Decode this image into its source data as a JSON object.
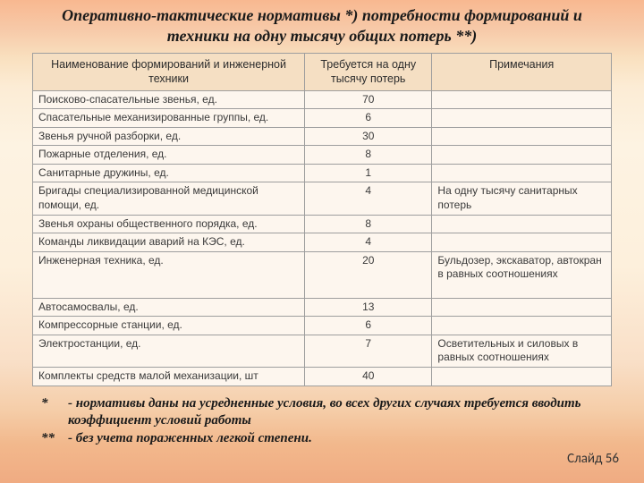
{
  "title": "Оперативно-тактические нормативы *) потребности формирований и техники на одну тысячу общих потерь **)",
  "headers": {
    "name": "Наименование формирований и инженерной техники",
    "num": "Требуется на одну тысячу потерь",
    "note": "Примечания"
  },
  "rows": [
    {
      "name": "Поисково-спасательные звенья, ед.",
      "num": "70",
      "note": ""
    },
    {
      "name": "Спасательные механизированные группы, ед.",
      "num": "6",
      "note": ""
    },
    {
      "name": "Звенья ручной разборки, ед.",
      "num": "30",
      "note": ""
    },
    {
      "name": "Пожарные отделения, ед.",
      "num": "8",
      "note": ""
    },
    {
      "name": "Санитарные дружины, ед.",
      "num": "1",
      "note": ""
    },
    {
      "name": "Бригады специализированной медицинской помощи, ед.",
      "num": "4",
      "note": "На одну тысячу санитарных потерь"
    },
    {
      "name": "Звенья охраны общественного порядка, ед.",
      "num": "8",
      "note": ""
    },
    {
      "name": "Команды ликвидации аварий на КЭС, ед.",
      "num": "4",
      "note": ""
    },
    {
      "name": "Инженерная техника, ед.\n\n\n",
      "num": "20",
      "note": "Бульдозер, экскаватор, автокран в равных соотношениях"
    },
    {
      "name": "Автосамосвалы, ед.",
      "num": "13",
      "note": ""
    },
    {
      "name": "Компрессорные станции, ед.",
      "num": "6",
      "note": ""
    },
    {
      "name": "Электростанции, ед.\n",
      "num": "7",
      "note": "Осветительных и силовых в равных соотношениях"
    },
    {
      "name": "Комплекты средств малой механизации, шт",
      "num": "40",
      "note": ""
    }
  ],
  "footnotes": {
    "f1_star": "*",
    "f1_text": "- нормативы даны на усредненные условия, во всех других случаях требуется  вводить коэффициент условий работы",
    "f2_star": "**",
    "f2_text": "- без учета пораженных легкой степени."
  },
  "slide_label": "Слайд 56"
}
